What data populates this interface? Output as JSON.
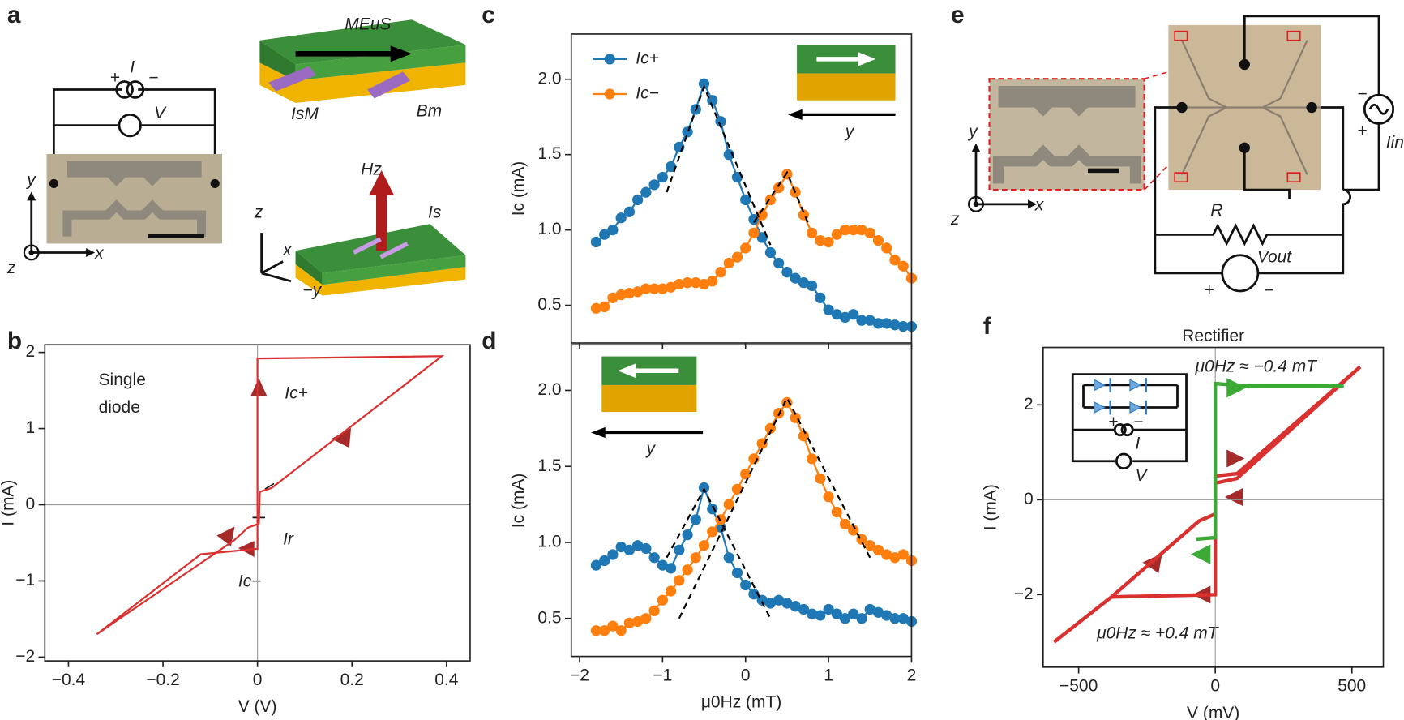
{
  "panel_labels": [
    "a",
    "b",
    "c",
    "d",
    "e",
    "f"
  ],
  "diagram_a": [
    "+",
    "I",
    "−",
    "V",
    "y",
    "z",
    "x",
    "MEuS",
    "IsM",
    "Bm",
    "Hz",
    "Is",
    "z",
    "x",
    "−y"
  ],
  "diagram_e": [
    "y",
    "z",
    "x",
    "R",
    "Vout",
    "Iin",
    "+",
    "−",
    "+",
    "−"
  ],
  "chart_data": [
    {
      "type": "line",
      "xlim": [
        -0.45,
        0.45
      ],
      "ylim": [
        -2.05,
        2.1
      ],
      "xticks": [
        {
          "value": -0.4,
          "label": "−0.4"
        },
        {
          "value": -0.2,
          "label": "−0.2"
        },
        0,
        0.2,
        0.4
      ],
      "yticks": [
        {
          "value": -2,
          "label": "−2"
        },
        {
          "value": -1,
          "label": "−1"
        },
        0,
        1,
        2
      ],
      "xlabel": "V (V)",
      "ylabel": "I (mA)",
      "zero_lines": true,
      "annotations": [
        "Single",
        "diode",
        "Ic+",
        "Ic−",
        "Ir"
      ],
      "series": [
        {
          "color": "#d9312f",
          "x": [
            -0.34,
            -0.12,
            -0.005,
            0,
            0,
            0.39,
            0.03,
            0.005,
            0.003,
            -0.02,
            -0.05,
            -0.34
          ],
          "values": [
            -1.7,
            -0.65,
            -0.58,
            -0.58,
            1.92,
            1.95,
            0.22,
            0.17,
            -0.25,
            -0.3,
            -0.47,
            -1.7
          ]
        }
      ]
    },
    {
      "type": "line",
      "xlim": [
        -2.1,
        2
      ],
      "ylim": [
        0.25,
        2.3
      ],
      "xtick_labels": false,
      "xticks": [
        -2,
        -1,
        0,
        1,
        2
      ],
      "yticks": [
        0.5,
        {
          "value": 1,
          "label": "1.0"
        },
        1.5,
        {
          "value": 2,
          "label": "2.0"
        }
      ],
      "ylabel": "Ic (mA)",
      "legend": "upper left",
      "annotations": [
        "y"
      ],
      "x": [
        -1.8,
        -1.7,
        -1.6,
        -1.5,
        -1.4,
        -1.3,
        -1.2,
        -1.1,
        -1.0,
        -0.9,
        -0.8,
        -0.7,
        -0.6,
        -0.5,
        -0.4,
        -0.3,
        -0.2,
        -0.1,
        0,
        0.1,
        0.2,
        0.3,
        0.4,
        0.5,
        0.6,
        0.7,
        0.8,
        0.9,
        1.0,
        1.1,
        1.2,
        1.3,
        1.4,
        1.5,
        1.6,
        1.7,
        1.8,
        1.9,
        2.0
      ],
      "series": [
        {
          "name": "Ic+",
          "color": "#1f77b4",
          "marker": true,
          "values": [
            0.92,
            0.97,
            1.0,
            1.08,
            1.12,
            1.2,
            1.25,
            1.3,
            1.35,
            1.42,
            1.55,
            1.65,
            1.8,
            1.97,
            1.86,
            1.72,
            1.5,
            1.35,
            1.2,
            1.07,
            0.95,
            0.85,
            0.78,
            0.72,
            0.68,
            0.65,
            0.63,
            0.55,
            0.47,
            0.44,
            0.42,
            0.44,
            0.4,
            0.4,
            0.38,
            0.38,
            0.37,
            0.36,
            0.36
          ]
        },
        {
          "name": "Ic−",
          "color": "#ff7f0e",
          "marker": true,
          "values": [
            0.48,
            0.49,
            0.55,
            0.57,
            0.58,
            0.59,
            0.61,
            0.61,
            0.61,
            0.62,
            0.64,
            0.65,
            0.65,
            0.64,
            0.66,
            0.72,
            0.78,
            0.82,
            0.88,
            0.98,
            1.1,
            1.2,
            1.28,
            1.37,
            1.25,
            1.1,
            0.98,
            0.93,
            0.92,
            0.97,
            1.0,
            1.0,
            1.0,
            0.98,
            0.93,
            0.88,
            0.8,
            0.76,
            0.68
          ]
        },
        {
          "color": "#000000",
          "linestyle": "dashed",
          "x": [
            -0.95,
            -0.5,
            0.3
          ],
          "values": [
            1.25,
            1.95,
            0.9
          ]
        },
        {
          "color": "#000000",
          "linestyle": "dashed",
          "x": [
            0.1,
            0.5,
            0.75
          ],
          "values": [
            1.05,
            1.38,
            1.05
          ]
        }
      ]
    },
    {
      "type": "line",
      "xlim": [
        -2.1,
        2
      ],
      "ylim": [
        0.25,
        2.3
      ],
      "xticks": [
        {
          "value": -2,
          "label": "−2"
        },
        {
          "value": -1,
          "label": "−1"
        },
        0,
        1,
        2
      ],
      "yticks": [
        0.5,
        {
          "value": 1,
          "label": "1.0"
        },
        1.5,
        {
          "value": 2,
          "label": "2.0"
        }
      ],
      "xlabel": "μ0Hz (mT)",
      "ylabel": "Ic (mA)",
      "annotations": [
        "y"
      ],
      "x": [
        -1.8,
        -1.7,
        -1.6,
        -1.5,
        -1.4,
        -1.3,
        -1.2,
        -1.1,
        -1.0,
        -0.9,
        -0.8,
        -0.7,
        -0.6,
        -0.5,
        -0.4,
        -0.3,
        -0.2,
        -0.1,
        0,
        0.1,
        0.2,
        0.3,
        0.4,
        0.5,
        0.6,
        0.7,
        0.8,
        0.9,
        1.0,
        1.1,
        1.2,
        1.3,
        1.4,
        1.5,
        1.6,
        1.7,
        1.8,
        1.9,
        2.0
      ],
      "series": [
        {
          "color": "#1f77b4",
          "marker": true,
          "values": [
            0.85,
            0.88,
            0.92,
            0.97,
            0.95,
            0.98,
            0.96,
            0.9,
            0.85,
            0.83,
            0.95,
            1.05,
            1.15,
            1.36,
            1.22,
            1.1,
            0.9,
            0.8,
            0.72,
            0.66,
            0.62,
            0.6,
            0.62,
            0.6,
            0.58,
            0.56,
            0.53,
            0.52,
            0.56,
            0.53,
            0.5,
            0.53,
            0.5,
            0.56,
            0.54,
            0.52,
            0.5,
            0.5,
            0.48
          ]
        },
        {
          "color": "#ff7f0e",
          "marker": true,
          "values": [
            0.42,
            0.42,
            0.45,
            0.42,
            0.47,
            0.48,
            0.5,
            0.55,
            0.62,
            0.68,
            0.75,
            0.82,
            0.9,
            0.98,
            1.07,
            1.15,
            1.25,
            1.35,
            1.45,
            1.55,
            1.65,
            1.75,
            1.85,
            1.92,
            1.82,
            1.7,
            1.55,
            1.42,
            1.3,
            1.2,
            1.12,
            1.08,
            1.02,
            0.98,
            0.95,
            0.92,
            0.9,
            0.92,
            0.88
          ]
        },
        {
          "color": "#000000",
          "linestyle": "dashed",
          "x": [
            -0.95,
            -0.5,
            0.3
          ],
          "values": [
            0.9,
            1.35,
            0.5
          ]
        },
        {
          "color": "#000000",
          "linestyle": "dashed",
          "x": [
            -0.8,
            0.5,
            1.5
          ],
          "values": [
            0.5,
            1.95,
            0.9
          ]
        }
      ]
    },
    {
      "type": "line",
      "title": "Rectifier",
      "xlim": [
        -630,
        615
      ],
      "ylim": [
        -3.53,
        3.21
      ],
      "xticks": [
        {
          "value": -500,
          "label": "−500"
        },
        0,
        500
      ],
      "yticks": [
        {
          "value": -2,
          "label": "−2"
        },
        0,
        2
      ],
      "xlabel": "V (mV)",
      "ylabel": "I (mA)",
      "zero_lines": true,
      "annotations": [
        "μ0Hz ≈ −0.4 mT",
        "μ0Hz ≈ +0.4 mT",
        "+",
        "−",
        "I",
        "V"
      ],
      "series": [
        {
          "color": "#d9312f",
          "x": [
            -590,
            -380,
            -60,
            -20,
            0,
            0,
            80,
            530,
            80,
            0,
            0,
            -380
          ],
          "values": [
            -3.0,
            -2.05,
            -0.45,
            -0.35,
            -0.3,
            0.5,
            0.55,
            2.8,
            0.45,
            0.35,
            -2.0,
            -2.05
          ]
        },
        {
          "color": "#3aaa35",
          "x": [
            -70,
            0,
            0,
            100,
            470
          ],
          "values": [
            -0.83,
            -0.8,
            2.45,
            2.4,
            2.4
          ]
        }
      ]
    }
  ]
}
